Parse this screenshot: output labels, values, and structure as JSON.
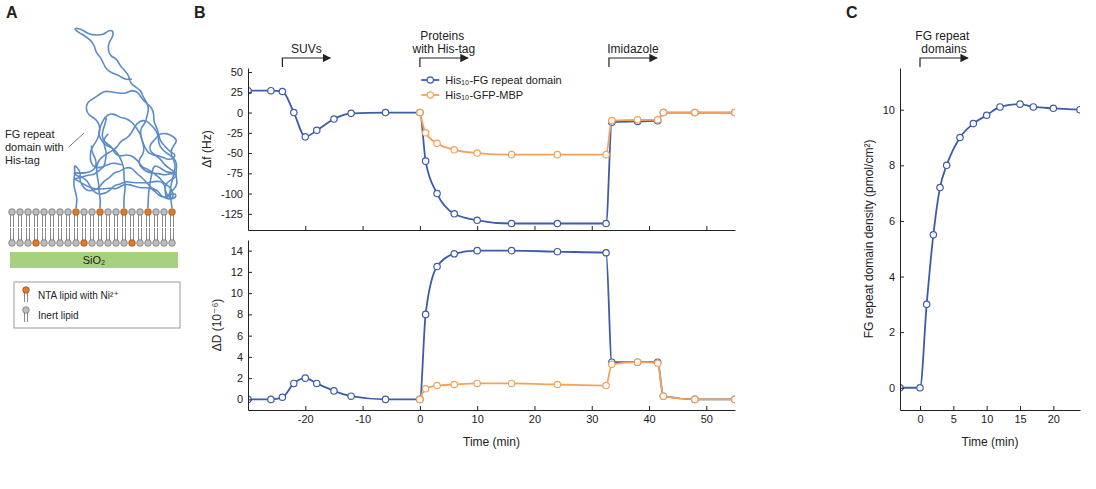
{
  "diagram": {
    "panel_label": "A",
    "chain_label": "FG repeat domain with His-tag",
    "substrate": "SiO₂",
    "legend_items": [
      {
        "label": "NTA lipid with Ni²⁺"
      },
      {
        "label": "Inert lipid"
      }
    ]
  },
  "chart_data": [
    {
      "type": "line",
      "panel_label": "B",
      "ylabel": "Δf (Hz)",
      "annotations": [
        {
          "text": "SUVs",
          "x": -24
        },
        {
          "text": "Proteins with His-tag",
          "x": 0
        },
        {
          "text": "Imidazole",
          "x": 33
        }
      ],
      "x": [
        -30,
        -26,
        -24,
        -22,
        -20,
        -18,
        -15,
        -12,
        -6,
        0,
        1,
        3,
        6,
        10,
        16,
        24,
        32.5,
        33.5,
        38,
        41.5,
        42.5,
        48,
        55
      ],
      "xlim": [
        -30,
        55
      ],
      "xticks": [
        -20,
        -10,
        0,
        10,
        20,
        30,
        40,
        50
      ],
      "ylim": [
        -145,
        55
      ],
      "yticks": [
        50,
        25,
        0,
        -25,
        -50,
        -75,
        -100,
        -125
      ],
      "tick_labels": "y",
      "grid": false,
      "legend": "upper center",
      "series": [
        {
          "name": "His₁₀-FG repeat domain",
          "color": "#3d5ca8",
          "marker": "circle",
          "line_style": "solid",
          "values": [
            27,
            27,
            26,
            0,
            -30,
            -22,
            -8,
            -1,
            0,
            0,
            -60,
            -100,
            -125,
            -133,
            -137,
            -137,
            -137,
            -12,
            -11,
            -10,
            0,
            0,
            0
          ]
        },
        {
          "name": "His₁₀-GFP-MBP",
          "color": "#f4a259",
          "marker": "circle",
          "line_style": "solid",
          "values": [
            null,
            null,
            null,
            null,
            null,
            null,
            null,
            null,
            null,
            0,
            -25,
            -38,
            -46,
            -50,
            -52,
            -52,
            -52,
            -10,
            -9,
            -9,
            0,
            0,
            0
          ]
        }
      ]
    },
    {
      "type": "line",
      "xlabel": "Time (min)",
      "ylabel": "ΔD (10⁻⁶)",
      "x": [
        -30,
        -26,
        -24,
        -22,
        -20,
        -18,
        -15,
        -12,
        -6,
        0,
        1,
        3,
        6,
        10,
        16,
        24,
        32.5,
        33.5,
        38,
        41.5,
        42.5,
        48,
        55
      ],
      "xlim": [
        -30,
        55
      ],
      "xticks": [
        -20,
        -10,
        0,
        10,
        20,
        30,
        40,
        50
      ],
      "ylim": [
        -1,
        15
      ],
      "yticks": [
        0,
        2,
        4,
        6,
        8,
        10,
        12,
        14
      ],
      "grid": false,
      "series": [
        {
          "color": "#3d5ca8",
          "marker": "circle",
          "line_style": "solid",
          "values": [
            0,
            0,
            0.2,
            1.5,
            2,
            1.5,
            0.8,
            0.3,
            0,
            0,
            8,
            12.5,
            13.7,
            14,
            14,
            13.9,
            13.8,
            3.5,
            3.5,
            3.5,
            0.3,
            0,
            0
          ]
        },
        {
          "color": "#f4a259",
          "marker": "circle",
          "line_style": "solid",
          "values": [
            null,
            null,
            null,
            null,
            null,
            null,
            null,
            null,
            null,
            0,
            1,
            1.3,
            1.4,
            1.5,
            1.5,
            1.4,
            1.3,
            3.3,
            3.5,
            3.4,
            0.3,
            0,
            0
          ]
        }
      ]
    },
    {
      "type": "line",
      "panel_label": "C",
      "xlabel": "Time (min)",
      "ylabel": "FG repeat domain density (pmol/cm²)",
      "annotations": [
        {
          "text": "FG repeat domains",
          "x": 0
        }
      ],
      "x": [
        -3,
        0,
        1,
        2,
        3,
        4,
        6,
        8,
        10,
        12,
        15,
        17,
        20,
        24
      ],
      "xlim": [
        -3,
        24
      ],
      "xticks": [
        0,
        5,
        10,
        15,
        20
      ],
      "ylim": [
        -0.8,
        11.5
      ],
      "yticks": [
        0,
        2,
        4,
        6,
        8,
        10
      ],
      "grid": false,
      "series": [
        {
          "color": "#3d5ca8",
          "marker": "circle",
          "line_style": "solid",
          "values": [
            0,
            0,
            3,
            5.5,
            7.2,
            8,
            9,
            9.5,
            9.8,
            10.1,
            10.2,
            10.1,
            10.05,
            10
          ]
        }
      ]
    }
  ]
}
